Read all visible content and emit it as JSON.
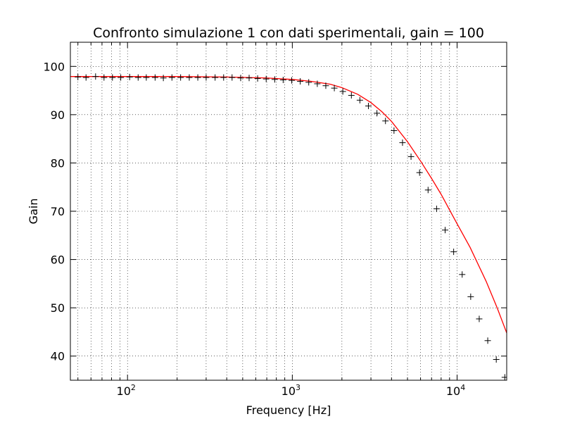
{
  "chart_data": {
    "type": "line",
    "title": "Confronto simulazione 1 con dati sperimentali, gain = 100",
    "xlabel": "Frequency [Hz]",
    "ylabel": "Gain",
    "xscale": "log",
    "xlim": [
      45,
      20000
    ],
    "ylim": [
      35,
      105
    ],
    "grid": true,
    "y_ticks": [
      "40",
      "50",
      "60",
      "70",
      "80",
      "90",
      "100"
    ],
    "y_tick_values": [
      40,
      50,
      60,
      70,
      80,
      90,
      100
    ],
    "x_ticks": [
      {
        "base": "10",
        "exp": "2",
        "value": 100
      },
      {
        "base": "10",
        "exp": "3",
        "value": 1000
      },
      {
        "base": "10",
        "exp": "4",
        "value": 10000
      }
    ],
    "series": [
      {
        "style": "solid-line",
        "color": "#ff0000",
        "x": [
          45,
          100,
          200,
          400,
          700,
          1000,
          1300,
          1700,
          2000,
          2500,
          3000,
          3500,
          4000,
          5000,
          6000,
          7000,
          8000,
          10000,
          12000,
          15000,
          17500,
          20000
        ],
        "y": [
          97.9,
          97.9,
          97.9,
          97.8,
          97.6,
          97.3,
          96.9,
          96.3,
          95.6,
          94.2,
          92.5,
          90.6,
          88.6,
          84.4,
          80.4,
          76.8,
          73.5,
          67.4,
          62.5,
          55.5,
          50.0,
          44.8
        ]
      },
      {
        "style": "plus-markers",
        "color": "#000000",
        "x": [
          50,
          56,
          64,
          72,
          81,
          91,
          103,
          116,
          130,
          147,
          165,
          186,
          210,
          237,
          267,
          300,
          340,
          383,
          431,
          486,
          547,
          616,
          694,
          782,
          880,
          992,
          1117,
          1258,
          1418,
          1597,
          1799,
          2026,
          2283,
          2571,
          2897,
          3263,
          3676,
          4141,
          4664,
          5254,
          5919,
          6667,
          7511,
          8460,
          9531,
          10736,
          12094,
          13623,
          15346,
          17287,
          19474
        ],
        "y": [
          97.8,
          97.7,
          97.9,
          97.7,
          97.7,
          97.7,
          97.8,
          97.7,
          97.7,
          97.7,
          97.6,
          97.7,
          97.7,
          97.7,
          97.7,
          97.7,
          97.7,
          97.7,
          97.7,
          97.6,
          97.6,
          97.5,
          97.4,
          97.3,
          97.2,
          97.1,
          96.9,
          96.7,
          96.4,
          96.0,
          95.5,
          94.8,
          94.0,
          93.0,
          91.8,
          90.3,
          88.7,
          86.7,
          84.2,
          81.3,
          78.0,
          74.4,
          70.5,
          66.1,
          61.6,
          56.9,
          52.3,
          47.7,
          43.2,
          39.3,
          35.6
        ]
      }
    ]
  }
}
